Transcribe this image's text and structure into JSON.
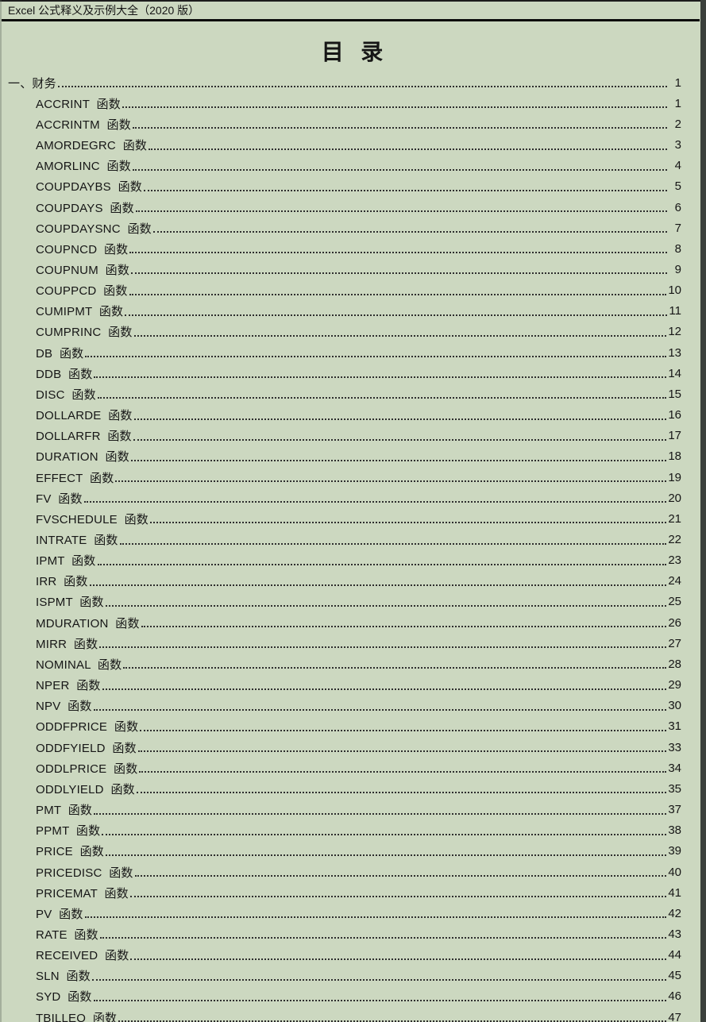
{
  "document": {
    "header": "Excel 公式释义及示例大全（2020 版）",
    "title": "目  录"
  },
  "toc": {
    "section": {
      "label": "一、财务",
      "page": "1"
    },
    "entries": [
      {
        "label": "ACCRINT  函数",
        "page": "1"
      },
      {
        "label": "ACCRINTM  函数",
        "page": "2"
      },
      {
        "label": "AMORDEGRC  函数",
        "page": "3"
      },
      {
        "label": "AMORLINC  函数",
        "page": "4"
      },
      {
        "label": "COUPDAYBS  函数",
        "page": "5"
      },
      {
        "label": "COUPDAYS  函数",
        "page": "6"
      },
      {
        "label": "COUPDAYSNC  函数",
        "page": "7"
      },
      {
        "label": "COUPNCD  函数",
        "page": "8"
      },
      {
        "label": "COUPNUM  函数",
        "page": "9"
      },
      {
        "label": "COUPPCD  函数",
        "page": "10"
      },
      {
        "label": "CUMIPMT  函数",
        "page": "11"
      },
      {
        "label": "CUMPRINC  函数",
        "page": "12"
      },
      {
        "label": "DB  函数",
        "page": "13"
      },
      {
        "label": "DDB  函数",
        "page": "14"
      },
      {
        "label": "DISC  函数",
        "page": "15"
      },
      {
        "label": "DOLLARDE  函数",
        "page": "16"
      },
      {
        "label": "DOLLARFR  函数",
        "page": "17"
      },
      {
        "label": "DURATION  函数",
        "page": "18"
      },
      {
        "label": "EFFECT  函数",
        "page": "19"
      },
      {
        "label": "FV  函数",
        "page": "20"
      },
      {
        "label": "FVSCHEDULE  函数",
        "page": "21"
      },
      {
        "label": "INTRATE  函数",
        "page": "22"
      },
      {
        "label": "IPMT  函数",
        "page": "23"
      },
      {
        "label": "IRR  函数",
        "page": "24"
      },
      {
        "label": "ISPMT  函数",
        "page": "25"
      },
      {
        "label": "MDURATION  函数",
        "page": "26"
      },
      {
        "label": "MIRR  函数",
        "page": "27"
      },
      {
        "label": "NOMINAL  函数",
        "page": "28"
      },
      {
        "label": "NPER  函数",
        "page": "29"
      },
      {
        "label": "NPV  函数",
        "page": "30"
      },
      {
        "label": "ODDFPRICE  函数",
        "page": "31"
      },
      {
        "label": "ODDFYIELD  函数",
        "page": "33"
      },
      {
        "label": "ODDLPRICE  函数",
        "page": "34"
      },
      {
        "label": "ODDLYIELD  函数",
        "page": "35"
      },
      {
        "label": "PMT  函数",
        "page": "37"
      },
      {
        "label": "PPMT  函数",
        "page": "38"
      },
      {
        "label": "PRICE  函数",
        "page": "39"
      },
      {
        "label": "PRICEDISC  函数",
        "page": "40"
      },
      {
        "label": "PRICEMAT  函数",
        "page": "41"
      },
      {
        "label": "PV  函数",
        "page": "42"
      },
      {
        "label": "RATE  函数",
        "page": "43"
      },
      {
        "label": "RECEIVED  函数",
        "page": "44"
      },
      {
        "label": "SLN  函数",
        "page": "45"
      },
      {
        "label": "SYD  函数",
        "page": "46"
      },
      {
        "label": "TBILLEQ  函数",
        "page": "47"
      }
    ]
  },
  "colors": {
    "background": "#ccd8c0",
    "text": "#161616",
    "leader_dots": "#2e2e2e",
    "top_line": "#1c1c1c",
    "header_rule": "#0c0c0c",
    "right_strip": "#3b403c"
  }
}
